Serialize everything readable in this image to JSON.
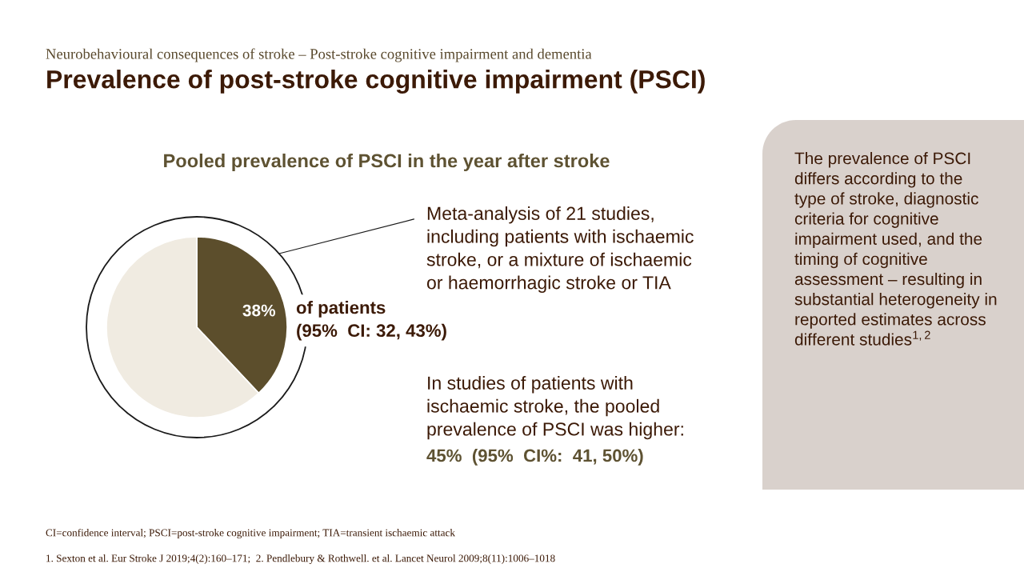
{
  "chart_data": {
    "type": "pie",
    "title": "Prevalence of post-stroke cognitive impairment (PSCI)",
    "subtitle": "Pooled prevalence of PSCI in the year after stroke",
    "categories": [
      null,
      null
    ],
    "values": [
      38,
      62
    ],
    "colors": [
      "#5c4e2c",
      "#f0ebe1"
    ],
    "value_labels": [
      "38%",
      null
    ],
    "annotations": [
      "Neurobehavioural consequences of stroke – Post-stroke cognitive impairment and dementia",
      "Meta-analysis of 21 studies,\nincluding patients with ischaemic\nstroke, or a mixture of ischaemic\nor haemorrhagic stroke or TIA",
      "of patients\n(95%  CI: 32, 43%)",
      "In studies of patients with\nischaemic stroke, the pooled\nprevalence of PSCI was higher:",
      "45%  (95%  CI%:  41, 50%)",
      "The prevalence of PSCI\ndiffers according to the\ntype of stroke, diagnostic\ncriteria for cognitive\nimpairment used, and the\ntiming of cognitive\nassessment – resulting in\nsubstantial heterogeneity in\nreported estimates across\ndifferent studies$^{1,2}$",
      "CI=confidence interval; PSCI=post-stroke cognitive impairment; TIA=transient ischaemic attack",
      "1. Sexton et al. Eur Stroke J 2019;4(2):160–171;  2. Pendlebury & Rothwell. et al. Lancet Neurol 2009;8(11):1006–1018"
    ]
  }
}
